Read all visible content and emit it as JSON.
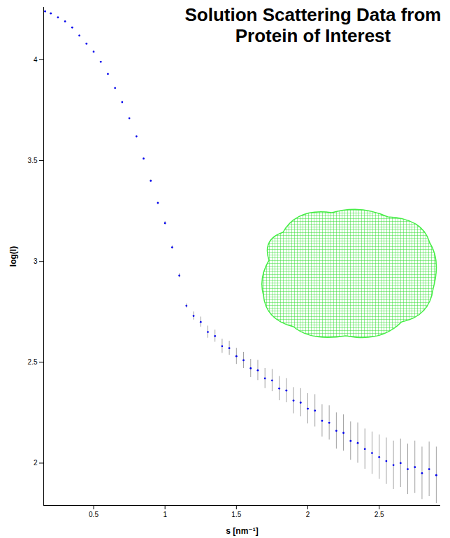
{
  "chart_data": {
    "type": "scatter",
    "title": "Solution Scattering Data from Protein of Interest",
    "x_label": "s [nm⁻¹]",
    "y_label": "log(I)",
    "x": [
      0.16,
      0.2,
      0.25,
      0.3,
      0.35,
      0.4,
      0.45,
      0.5,
      0.55,
      0.6,
      0.65,
      0.7,
      0.75,
      0.8,
      0.85,
      0.9,
      0.95,
      1.0,
      1.05,
      1.1,
      1.15,
      1.2,
      1.25,
      1.3,
      1.35,
      1.4,
      1.45,
      1.5,
      1.55,
      1.6,
      1.65,
      1.7,
      1.75,
      1.8,
      1.85,
      1.9,
      1.95,
      2.0,
      2.05,
      2.1,
      2.15,
      2.2,
      2.25,
      2.3,
      2.35,
      2.4,
      2.45,
      2.5,
      2.55,
      2.6,
      2.65,
      2.7,
      2.75,
      2.8,
      2.85,
      2.9
    ],
    "values": [
      4.24,
      4.23,
      4.21,
      4.19,
      4.16,
      4.12,
      4.08,
      4.04,
      3.99,
      3.93,
      3.86,
      3.79,
      3.71,
      3.62,
      3.51,
      3.4,
      3.29,
      3.19,
      3.07,
      2.93,
      2.78,
      2.73,
      2.7,
      2.65,
      2.63,
      2.58,
      2.57,
      2.53,
      2.51,
      2.47,
      2.46,
      2.42,
      2.41,
      2.37,
      2.36,
      2.31,
      2.3,
      2.27,
      2.26,
      2.21,
      2.2,
      2.16,
      2.15,
      2.11,
      2.1,
      2.07,
      2.05,
      2.03,
      2.01,
      1.99,
      2.0,
      1.97,
      1.98,
      1.95,
      1.97,
      1.94
    ],
    "errors": [
      0.003,
      0.003,
      0.003,
      0.003,
      0.003,
      0.003,
      0.003,
      0.003,
      0.003,
      0.003,
      0.003,
      0.003,
      0.003,
      0.003,
      0.003,
      0.005,
      0.005,
      0.008,
      0.008,
      0.01,
      0.01,
      0.02,
      0.025,
      0.03,
      0.03,
      0.035,
      0.035,
      0.04,
      0.04,
      0.045,
      0.05,
      0.05,
      0.055,
      0.06,
      0.06,
      0.065,
      0.07,
      0.075,
      0.08,
      0.08,
      0.085,
      0.09,
      0.09,
      0.095,
      0.1,
      0.1,
      0.105,
      0.11,
      0.115,
      0.12,
      0.12,
      0.125,
      0.13,
      0.13,
      0.135,
      0.14
    ],
    "color": "#0000ee",
    "marker": "dot",
    "xlim": [
      0.15,
      2.93
    ],
    "ylim": [
      1.79,
      4.26
    ],
    "xticks": [
      0.5,
      1,
      1.5,
      2,
      2.5
    ],
    "yticks": [
      2,
      2.5,
      3,
      3.5,
      4
    ],
    "grid": false
  }
}
